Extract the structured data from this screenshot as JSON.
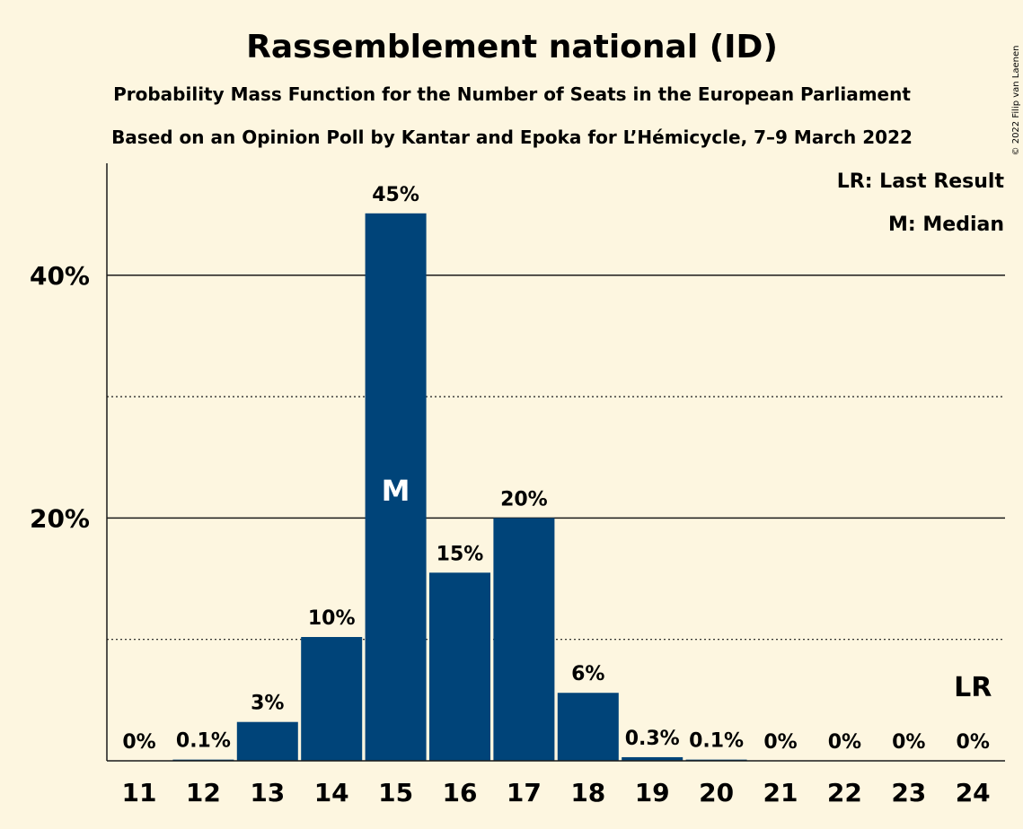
{
  "chart_data": {
    "type": "bar",
    "title": "Rassemblement national (ID)",
    "subtitle_1": "Probability Mass Function for the Number of Seats in the European Parliament",
    "subtitle_2": "Based on an Opinion Poll by Kantar and Epoka for L’Hémicycle, 7–9 March 2022",
    "categories": [
      "11",
      "12",
      "13",
      "14",
      "15",
      "16",
      "17",
      "18",
      "19",
      "20",
      "21",
      "22",
      "23",
      "24"
    ],
    "values": [
      0,
      0.1,
      3.2,
      10.2,
      45.1,
      15.5,
      20.0,
      5.6,
      0.3,
      0.1,
      0,
      0,
      0,
      0
    ],
    "data_labels": [
      "0%",
      "0.1%",
      "3%",
      "10%",
      "45%",
      "15%",
      "20%",
      "6%",
      "0.3%",
      "0.1%",
      "0%",
      "0%",
      "0%",
      "0%"
    ],
    "ylim": [
      0,
      48
    ],
    "yticks": [
      {
        "value": 20,
        "label": "20%"
      },
      {
        "value": 40,
        "label": "40%"
      }
    ],
    "minor_gridlines": [
      10,
      30
    ],
    "median_seat": "15",
    "median_marker": "M",
    "last_result_seat": "24",
    "last_result_marker": "LR",
    "legend": [
      "LR: Last Result",
      "M: Median"
    ],
    "legend_position": "top-right",
    "bar_color": "#004479",
    "copyright": "© 2022 Filip van Laenen"
  }
}
